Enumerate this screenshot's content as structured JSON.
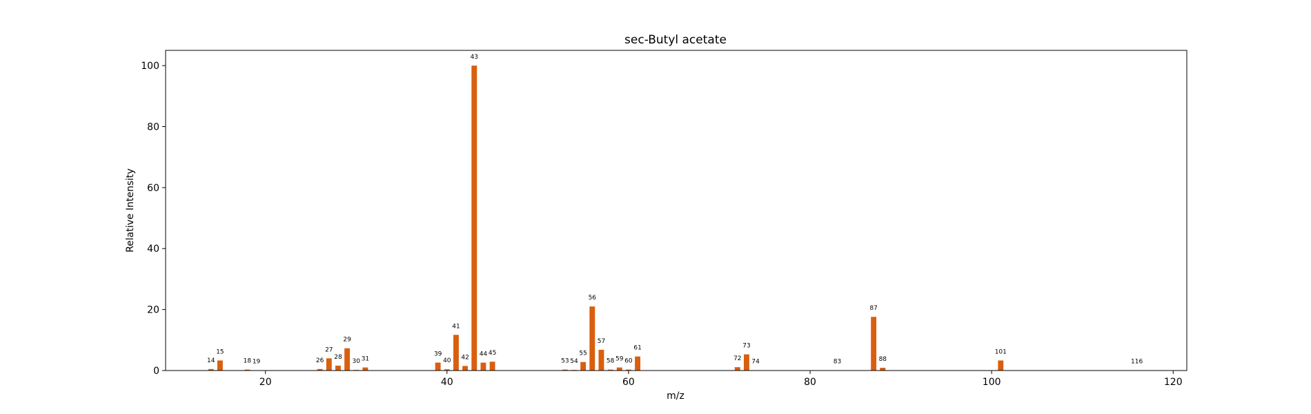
{
  "chart_data": {
    "type": "bar",
    "title": "sec-Butyl acetate",
    "xlabel": "m/z",
    "ylabel": "Relative Intensity",
    "xlim": [
      9,
      121.5
    ],
    "ylim": [
      0,
      105
    ],
    "xticks": [
      20,
      40,
      60,
      80,
      100,
      120
    ],
    "yticks": [
      0,
      20,
      40,
      60,
      80,
      100
    ],
    "grid": false,
    "legend": "none",
    "bar_color": "#d95f0e",
    "peaks": [
      {
        "mz": 14,
        "intensity": 0.5
      },
      {
        "mz": 15,
        "intensity": 3.3
      },
      {
        "mz": 18,
        "intensity": 0.3
      },
      {
        "mz": 19,
        "intensity": 0.1
      },
      {
        "mz": 26,
        "intensity": 0.5
      },
      {
        "mz": 27,
        "intensity": 4.0
      },
      {
        "mz": 28,
        "intensity": 1.6
      },
      {
        "mz": 29,
        "intensity": 7.3
      },
      {
        "mz": 30,
        "intensity": 0.2
      },
      {
        "mz": 31,
        "intensity": 1.0
      },
      {
        "mz": 39,
        "intensity": 2.6
      },
      {
        "mz": 40,
        "intensity": 0.4
      },
      {
        "mz": 41,
        "intensity": 11.7
      },
      {
        "mz": 42,
        "intensity": 1.5
      },
      {
        "mz": 43,
        "intensity": 100
      },
      {
        "mz": 44,
        "intensity": 2.6
      },
      {
        "mz": 45,
        "intensity": 2.9
      },
      {
        "mz": 53,
        "intensity": 0.3
      },
      {
        "mz": 54,
        "intensity": 0.2
      },
      {
        "mz": 55,
        "intensity": 2.8
      },
      {
        "mz": 56,
        "intensity": 21.0
      },
      {
        "mz": 57,
        "intensity": 6.8
      },
      {
        "mz": 58,
        "intensity": 0.3
      },
      {
        "mz": 59,
        "intensity": 1.0
      },
      {
        "mz": 60,
        "intensity": 0.3
      },
      {
        "mz": 61,
        "intensity": 4.6
      },
      {
        "mz": 72,
        "intensity": 1.1
      },
      {
        "mz": 73,
        "intensity": 5.3
      },
      {
        "mz": 74,
        "intensity": 0.1
      },
      {
        "mz": 83,
        "intensity": 0.1
      },
      {
        "mz": 87,
        "intensity": 17.6
      },
      {
        "mz": 88,
        "intensity": 0.9
      },
      {
        "mz": 101,
        "intensity": 3.3
      },
      {
        "mz": 116,
        "intensity": 0.1
      }
    ]
  }
}
